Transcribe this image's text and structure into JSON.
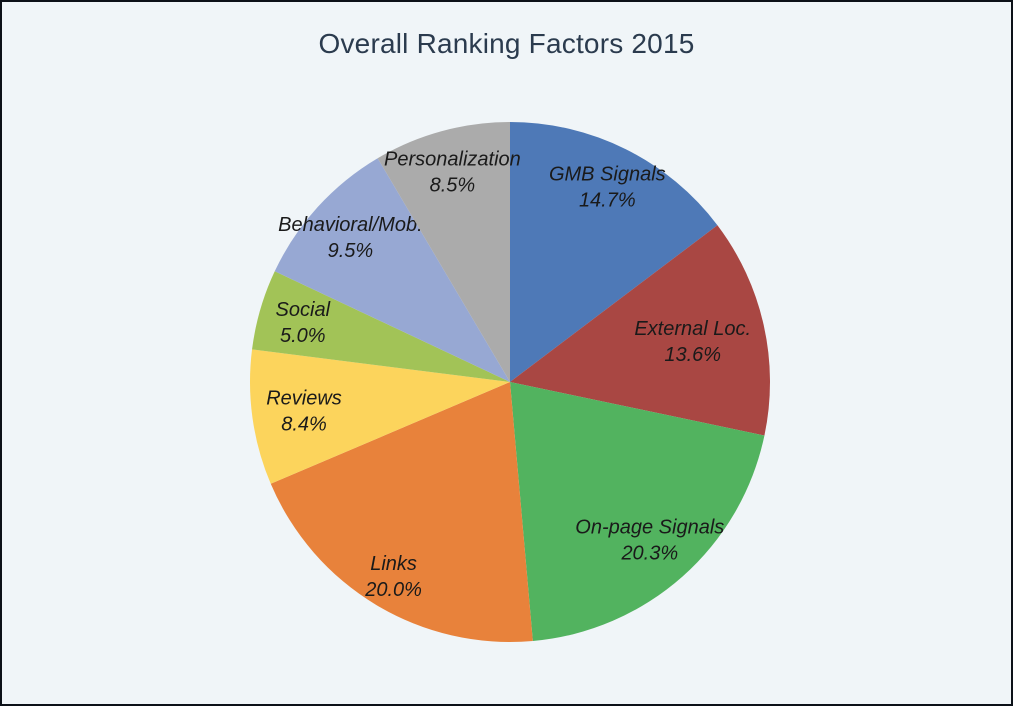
{
  "page": {
    "background_color": "#f0f5f8",
    "border_color": "#0c1118"
  },
  "chart_data": {
    "type": "pie",
    "title": "Overall Ranking Factors 2015",
    "title_color": "#2b3b4e",
    "label_color": "#1a1a1a",
    "legend": "none",
    "start_at": "12-oclock",
    "direction": "clockwise",
    "total": 100.0,
    "slices": [
      {
        "label": "GMB Signals",
        "value": 14.7,
        "pct_label": "14.7%",
        "color": "#4e79b7",
        "label_r": 0.84
      },
      {
        "label": "External Loc.",
        "value": 13.6,
        "pct_label": "13.6%",
        "color": "#a94743",
        "label_r": 0.72
      },
      {
        "label": "On-page Signals",
        "value": 20.3,
        "pct_label": "20.3%",
        "color": "#52b35f",
        "label_r": 0.81
      },
      {
        "label": "Links",
        "value": 20.0,
        "pct_label": "20.0%",
        "color": "#e8823b",
        "label_r": 0.87
      },
      {
        "label": "Reviews",
        "value": 8.4,
        "pct_label": "8.4%",
        "color": "#fcd45c",
        "label_r": 0.8
      },
      {
        "label": "Social",
        "value": 5.0,
        "pct_label": "5.0%",
        "color": "#a2c357",
        "label_r": 0.83
      },
      {
        "label": "Behavioral/Mob.",
        "value": 9.5,
        "pct_label": "9.5%",
        "color": "#97a8d3",
        "label_r": 0.83
      },
      {
        "label": "Personalization",
        "value": 8.5,
        "pct_label": "8.5%",
        "color": "#ababab",
        "label_r": 0.84
      }
    ]
  }
}
